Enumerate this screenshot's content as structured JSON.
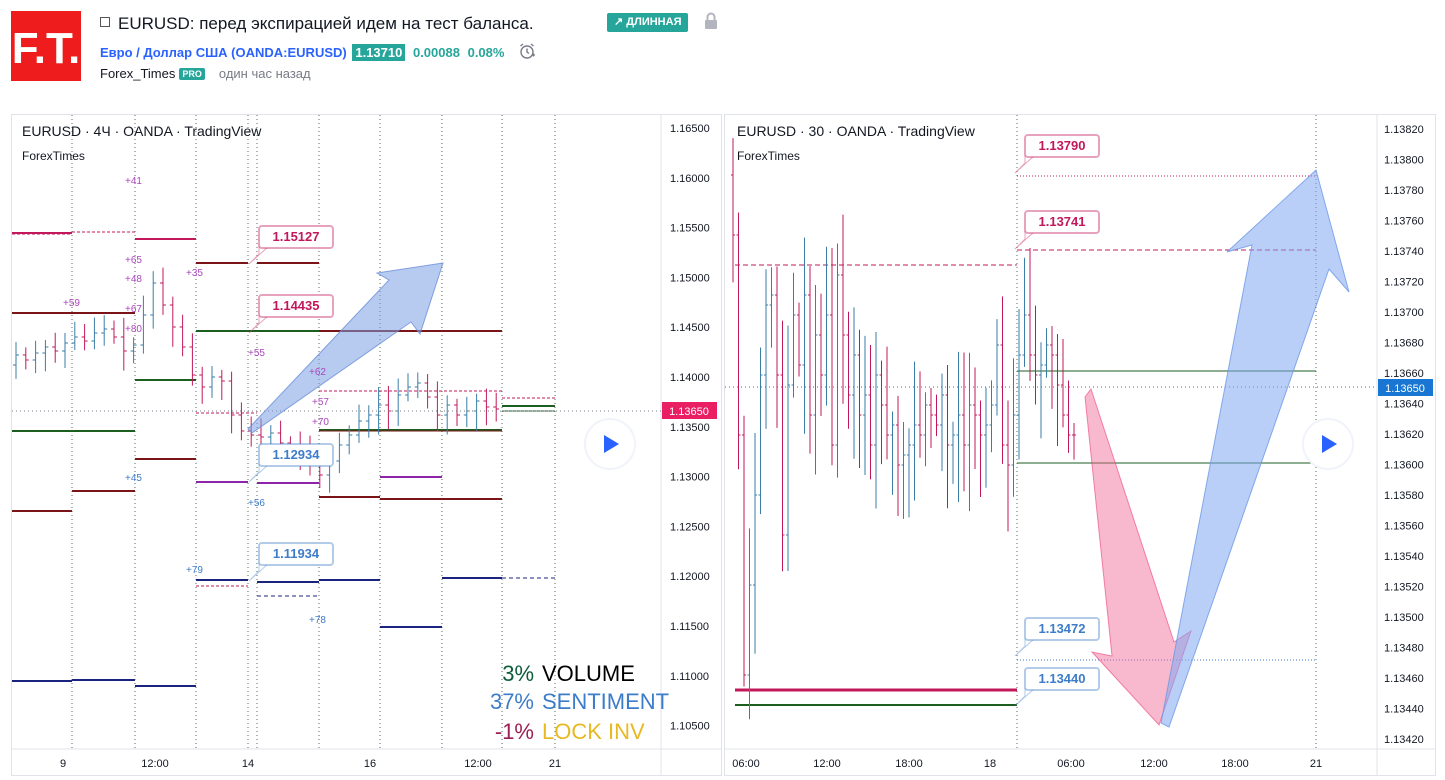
{
  "header": {
    "logo_text": "F.T.",
    "title": "EURUSD: перед экспирацией идем на тест баланса.",
    "direction_badge": "↗ ДЛИННАЯ",
    "symbol": "Евро / Доллар США (OANDA:EURUSD)",
    "price": "1.13710",
    "change": "0.00088",
    "change_pct": "0.08%",
    "author": "Forex_Times",
    "author_badge": "PRO",
    "time_ago": "один час назад"
  },
  "colors": {
    "up": "#26a69a",
    "accent": "#2962ff",
    "candle_up": "#3a7ea8",
    "candle_down": "#c2185b",
    "current_price_bg": "#e91e63",
    "current_price_bg2": "#1976d2"
  },
  "chart_left": {
    "legend": "EURUSD · 4Ч · OANDA · TradingView",
    "watermark": "ForexTimes",
    "price_ticks": [
      "1.16500",
      "1.16000",
      "1.15500",
      "1.15000",
      "1.14500",
      "1.14000",
      "1.13500",
      "1.13000",
      "1.12500",
      "1.12000",
      "1.11500",
      "1.11000",
      "1.10500"
    ],
    "time_ticks": [
      "9",
      "12:00",
      "14",
      "16",
      "12:00",
      "21"
    ],
    "current_price": "1.13650",
    "callouts": [
      "1.15127",
      "1.14435",
      "1.12934",
      "1.11934"
    ],
    "level_markers": [
      "+41",
      "+65",
      "+48",
      "+59",
      "+67",
      "+80",
      "+35",
      "+55",
      "+62",
      "+57",
      "+70",
      "+45",
      "+56",
      "+79",
      "+78"
    ],
    "stats": [
      {
        "value": "3%",
        "label": "VOLUME",
        "value_color": "#0d5c3a",
        "label_color": "#000000"
      },
      {
        "value": "37%",
        "label": "SENTIMENT",
        "value_color": "#3d7cc9",
        "label_color": "#3d7cc9"
      },
      {
        "value": "-1%",
        "label": "LOCK INV",
        "value_color": "#9c1f55",
        "label_color": "#e8b923"
      }
    ]
  },
  "chart_right": {
    "legend": "EURUSD · 30 · OANDA · TradingView",
    "watermark": "ForexTimes",
    "price_ticks": [
      "1.13820",
      "1.13800",
      "1.13780",
      "1.13760",
      "1.13740",
      "1.13720",
      "1.13700",
      "1.13680",
      "1.13660",
      "1.13640",
      "1.13620",
      "1.13600",
      "1.13580",
      "1.13560",
      "1.13540",
      "1.13520",
      "1.13500",
      "1.13480",
      "1.13460",
      "1.13440",
      "1.13420"
    ],
    "time_ticks": [
      "06:00",
      "12:00",
      "18:00",
      "18",
      "06:00",
      "12:00",
      "18:00",
      "21"
    ],
    "current_price": "1.13650",
    "callouts": [
      "1.13790",
      "1.13741",
      "1.13472",
      "1.13440"
    ]
  }
}
